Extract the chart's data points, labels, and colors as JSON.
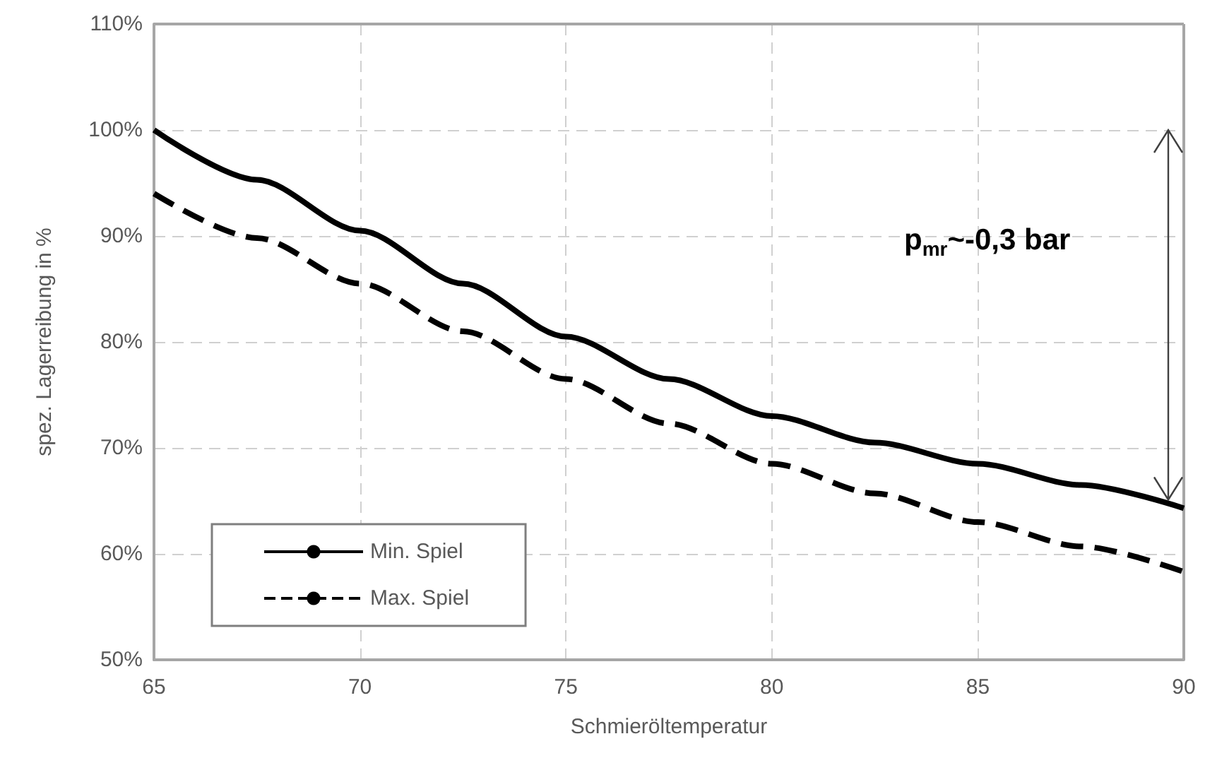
{
  "chart_data": {
    "type": "line",
    "xlabel": "Schmieröltemperatur",
    "ylabel": "spez. Lagerreibung in %",
    "x": [
      65,
      67.5,
      70,
      72.5,
      75,
      77.5,
      80,
      82.5,
      85,
      87.5,
      90
    ],
    "series": [
      {
        "name": "Min. Spiel",
        "color": "#000000",
        "line_style": "solid",
        "values": [
          100,
          95.3,
          90.5,
          85.5,
          80.5,
          76.5,
          73,
          70.5,
          68.5,
          66.5,
          64.3
        ]
      },
      {
        "name": "Max. Spiel",
        "color": "#000000",
        "line_style": "dashed",
        "values": [
          94,
          89.8,
          85.5,
          81,
          76.5,
          72.3,
          68.5,
          65.7,
          63,
          60.7,
          58.3
        ]
      }
    ],
    "xlim": [
      65,
      90
    ],
    "xticks": [
      65,
      70,
      75,
      80,
      85,
      90
    ],
    "ylim": [
      50,
      110
    ],
    "yticks": [
      {
        "value": 50,
        "label": "50%"
      },
      {
        "value": 60,
        "label": "60%"
      },
      {
        "value": 70,
        "label": "70%"
      },
      {
        "value": 80,
        "label": "80%"
      },
      {
        "value": 90,
        "label": "90%"
      },
      {
        "value": 100,
        "label": "100%"
      },
      {
        "value": 110,
        "label": "110%"
      }
    ],
    "annotations": [
      "p$_{mr}$~-0,3 bar"
    ],
    "grid": true,
    "legend": "bottom left",
    "marker": "none"
  }
}
